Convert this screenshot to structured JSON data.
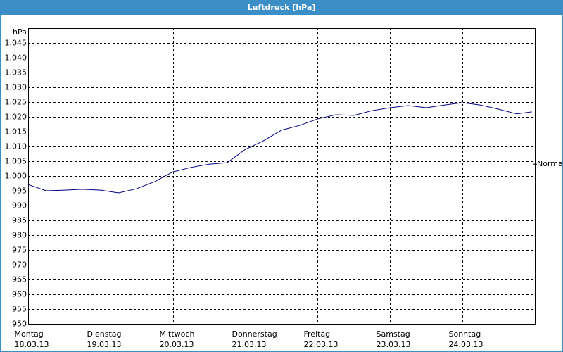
{
  "chart_data": {
    "type": "line",
    "title": "Luftdruck [hPa]",
    "y_unit": "hPa",
    "x": [
      0,
      6,
      12,
      18,
      24,
      30,
      36,
      42,
      48,
      54,
      60,
      66,
      72,
      78,
      84,
      90,
      96,
      102,
      108,
      114,
      120,
      126,
      132,
      138,
      144,
      150,
      156,
      162,
      167
    ],
    "series": [
      {
        "name": "Luftdruck",
        "color": "#000080",
        "values": [
          997.1,
          995,
          995.2,
          995.5,
          995.2,
          994.3,
          995.7,
          998.1,
          1001.4,
          1002.9,
          1004,
          1004.5,
          1009,
          1011.9,
          1015.5,
          1017.1,
          1019.3,
          1020.7,
          1020.5,
          1022.1,
          1023.1,
          1023.8,
          1023.1,
          1024,
          1024.8,
          1024,
          1022.6,
          1021,
          1021.7
        ]
      }
    ],
    "xlim": [
      0,
      168
    ],
    "xticks": [
      {
        "value": 0,
        "label": "Montag",
        "date": "18.03.13"
      },
      {
        "value": 24,
        "label": "Dienstag",
        "date": "19.03.13"
      },
      {
        "value": 48,
        "label": "Mittwoch",
        "date": "20.03.13"
      },
      {
        "value": 72,
        "label": "Donnerstag",
        "date": "21.03.13"
      },
      {
        "value": 96,
        "label": "Freitag",
        "date": "22.03.13"
      },
      {
        "value": 120,
        "label": "Samstag",
        "date": "23.03.13"
      },
      {
        "value": 144,
        "label": "Sonntag",
        "date": "24.03.13"
      }
    ],
    "ylim": [
      950,
      1050
    ],
    "yticks": [
      950,
      955,
      960,
      965,
      970,
      975,
      980,
      985,
      990,
      995,
      {
        "value": 1000,
        "label": "1.000"
      },
      {
        "value": 1005,
        "label": "1.005"
      },
      {
        "value": 1010,
        "label": "1.010"
      },
      {
        "value": 1015,
        "label": "1.015"
      },
      {
        "value": 1020,
        "label": "1.020"
      },
      {
        "value": 1025,
        "label": "1.025"
      },
      {
        "value": 1030,
        "label": "1.030"
      },
      {
        "value": 1035,
        "label": "1.035"
      },
      {
        "value": 1040,
        "label": "1.040"
      },
      {
        "value": 1045,
        "label": "1.045"
      }
    ],
    "annotations": [
      {
        "text": "Normal",
        "value": 1004
      }
    ],
    "grid": true
  }
}
